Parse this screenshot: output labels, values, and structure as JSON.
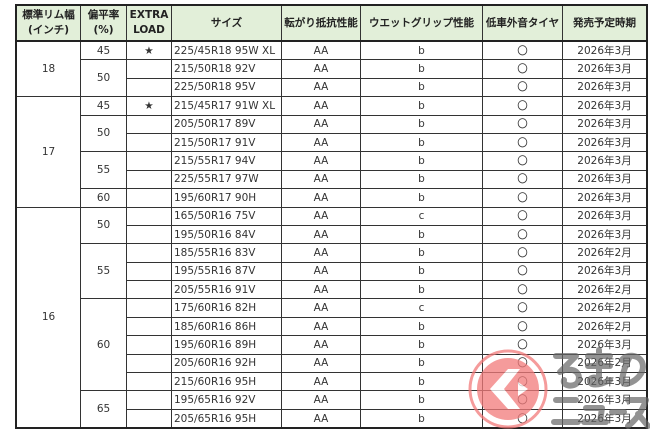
{
  "headers": [
    "標準リム幅\n(インチ)",
    "偏平率\n(%)",
    "EXTRA\nLOAD",
    "サイズ",
    "転がり抵抗性能",
    "ウエットグリップ性能",
    "低車外音タイヤ",
    "発売予定時期"
  ],
  "rim_groups": [
    {
      "rim": "18",
      "aspects": [
        {
          "aspect": "45",
          "rows": [
            {
              "xl": "★",
              "size": "225/45R18 95W XL",
              "rolling": "AA",
              "wet": "b",
              "low_noise": "〇",
              "release": "2026年3月"
            }
          ]
        },
        {
          "aspect": "50",
          "rows": [
            {
              "xl": "",
              "size": "215/50R18 92V",
              "rolling": "AA",
              "wet": "b",
              "low_noise": "〇",
              "release": "2026年3月"
            },
            {
              "xl": "",
              "size": "225/50R18 95V",
              "rolling": "AA",
              "wet": "b",
              "low_noise": "〇",
              "release": "2026年3月"
            }
          ]
        }
      ]
    },
    {
      "rim": "17",
      "aspects": [
        {
          "aspect": "45",
          "rows": [
            {
              "xl": "★",
              "size": "215/45R17 91W XL",
              "rolling": "AA",
              "wet": "b",
              "low_noise": "〇",
              "release": "2026年3月"
            }
          ]
        },
        {
          "aspect": "50",
          "rows": [
            {
              "xl": "",
              "size": "205/50R17 89V",
              "rolling": "AA",
              "wet": "b",
              "low_noise": "〇",
              "release": "2026年3月"
            },
            {
              "xl": "",
              "size": "215/50R17 91V",
              "rolling": "AA",
              "wet": "b",
              "low_noise": "〇",
              "release": "2026年3月"
            }
          ]
        },
        {
          "aspect": "55",
          "rows": [
            {
              "xl": "",
              "size": "215/55R17 94V",
              "rolling": "AA",
              "wet": "b",
              "low_noise": "〇",
              "release": "2026年3月"
            },
            {
              "xl": "",
              "size": "225/55R17 97W",
              "rolling": "AA",
              "wet": "b",
              "low_noise": "〇",
              "release": "2026年3月"
            }
          ]
        },
        {
          "aspect": "60",
          "rows": [
            {
              "xl": "",
              "size": "195/60R17 90H",
              "rolling": "AA",
              "wet": "b",
              "low_noise": "〇",
              "release": "2026年3月"
            }
          ]
        }
      ]
    },
    {
      "rim": "16",
      "aspects": [
        {
          "aspect": "50",
          "rows": [
            {
              "xl": "",
              "size": "165/50R16 75V",
              "rolling": "AA",
              "wet": "c",
              "low_noise": "〇",
              "release": "2026年3月"
            },
            {
              "xl": "",
              "size": "195/50R16 84V",
              "rolling": "AA",
              "wet": "b",
              "low_noise": "〇",
              "release": "2026年3月"
            }
          ]
        },
        {
          "aspect": "55",
          "rows": [
            {
              "xl": "",
              "size": "185/55R16 83V",
              "rolling": "AA",
              "wet": "b",
              "low_noise": "〇",
              "release": "2026年2月"
            },
            {
              "xl": "",
              "size": "195/55R16 87V",
              "rolling": "AA",
              "wet": "b",
              "low_noise": "〇",
              "release": "2026年3月"
            },
            {
              "xl": "",
              "size": "205/55R16 91V",
              "rolling": "AA",
              "wet": "b",
              "low_noise": "〇",
              "release": "2026年2月"
            }
          ]
        },
        {
          "aspect": "60",
          "rows": [
            {
              "xl": "",
              "size": "175/60R16 82H",
              "rolling": "AA",
              "wet": "c",
              "low_noise": "〇",
              "release": "2026年2月"
            },
            {
              "xl": "",
              "size": "185/60R16 86H",
              "rolling": "AA",
              "wet": "b",
              "low_noise": "〇",
              "release": "2026年2月"
            },
            {
              "xl": "",
              "size": "195/60R16 89H",
              "rolling": "AA",
              "wet": "b",
              "low_noise": "〇",
              "release": "2026年3月"
            },
            {
              "xl": "",
              "size": "205/60R16 92H",
              "rolling": "AA",
              "wet": "b",
              "low_noise": "〇",
              "release": "2026年2月"
            },
            {
              "xl": "",
              "size": "215/60R16 95H",
              "rolling": "AA",
              "wet": "b",
              "low_noise": "〇",
              "release": "2026年3月"
            }
          ]
        },
        {
          "aspect": "65",
          "rows": [
            {
              "xl": "",
              "size": "195/65R16 92V",
              "rolling": "AA",
              "wet": "b",
              "low_noise": "〇",
              "release": "2026年3月"
            },
            {
              "xl": "",
              "size": "205/65R16 95H",
              "rolling": "AA",
              "wet": "b",
              "low_noise": "〇",
              "release": "2026年3月"
            }
          ]
        }
      ]
    }
  ],
  "watermark": {
    "text": "くるまのニュース",
    "color": "#f05a5a"
  },
  "colors": {
    "header_bg": "#e2efd9"
  }
}
